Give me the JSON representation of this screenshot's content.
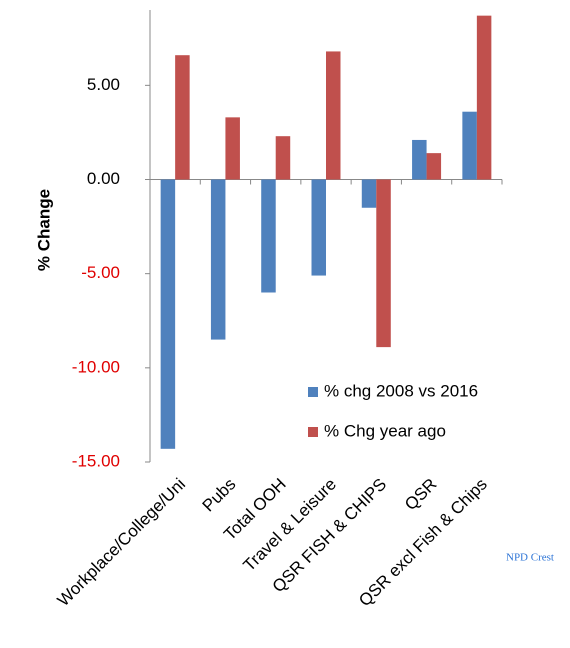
{
  "chart_data": {
    "type": "bar",
    "y_axis_label": "% Change",
    "categories": [
      "Workplace/College/Uni",
      "Pubs",
      "Total OOH",
      "Travel & Leisure",
      "QSR FISH & CHIPS",
      "QSR",
      "QSR excl Fish & Chips"
    ],
    "series": [
      {
        "name": "% chg 2008 vs 2016",
        "color": "#4f81bd",
        "values": [
          -14.3,
          -8.5,
          -6.0,
          -5.1,
          -1.5,
          2.1,
          3.6
        ]
      },
      {
        "name": "% Chg year ago",
        "color": "#c0504d",
        "values": [
          6.6,
          3.3,
          2.3,
          6.8,
          -8.9,
          1.4,
          8.7
        ]
      }
    ],
    "ylim": [
      -15,
      9
    ],
    "yticks": [
      {
        "value": 5,
        "label": "5.00"
      },
      {
        "value": 0,
        "label": "0.00"
      },
      {
        "value": -5,
        "label": "-5.00"
      },
      {
        "value": -10,
        "label": "-10.00"
      },
      {
        "value": -15,
        "label": "-15.00"
      }
    ],
    "negative_tick_color": "#e00000",
    "source": "NPD Crest"
  }
}
